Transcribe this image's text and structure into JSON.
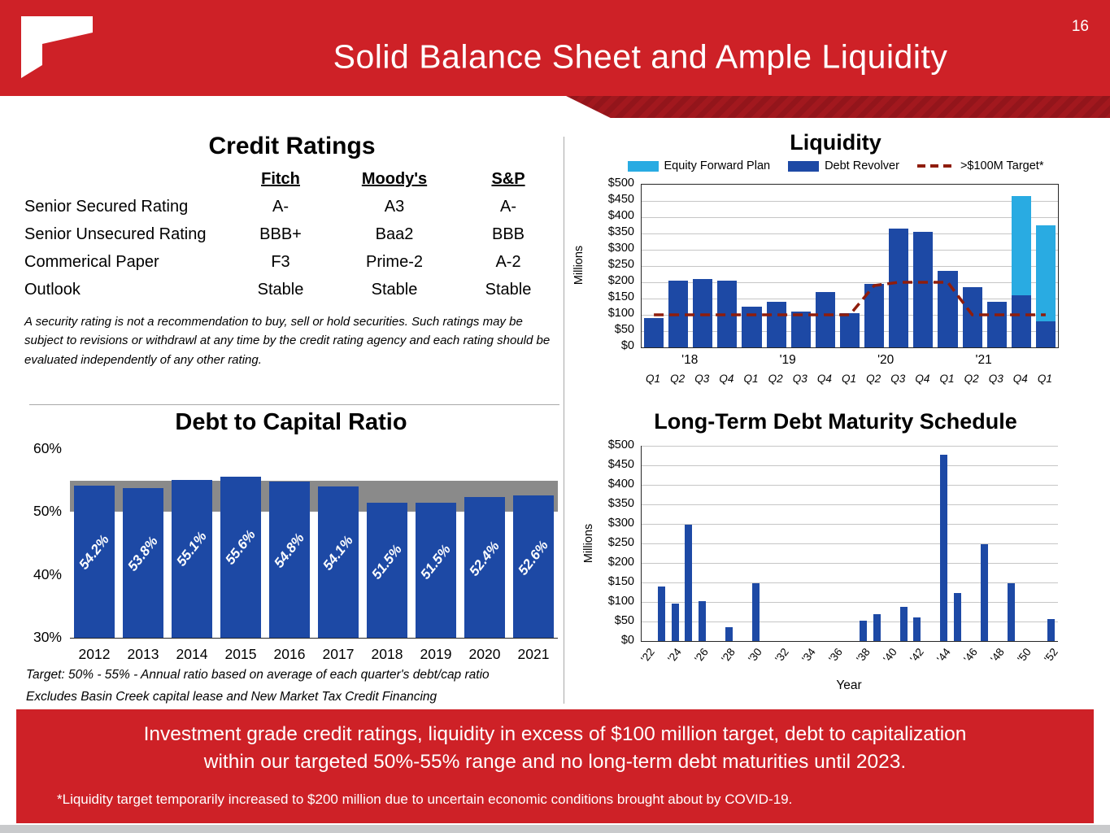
{
  "page": {
    "number": "16",
    "title": "Solid Balance Sheet and Ample Liquidity"
  },
  "credit_ratings": {
    "title": "Credit Ratings",
    "columns": [
      "Fitch",
      "Moody's",
      "S&P"
    ],
    "rows": [
      {
        "label": "Senior Secured Rating",
        "values": [
          "A-",
          "A3",
          "A-"
        ]
      },
      {
        "label": "Senior Unsecured Rating",
        "values": [
          "BBB+",
          "Baa2",
          "BBB"
        ]
      },
      {
        "label": "Commerical Paper",
        "values": [
          "F3",
          "Prime-2",
          "A-2"
        ]
      },
      {
        "label": "Outlook",
        "values": [
          "Stable",
          "Stable",
          "Stable"
        ]
      }
    ],
    "disclaimer": "A security rating is not a recommendation to buy, sell or hold securities.  Such ratings may be subject to revisions or withdrawl at any time by the credit rating agency and each rating should be evaluated independently of any other rating."
  },
  "footer": {
    "takeaway_line1": "Investment grade credit ratings, liquidity in excess of $100 million target, debt to capitalization",
    "takeaway_line2": "within our targeted 50%-55% range and no long-term debt maturities until 2023.",
    "footnote": "*Liquidity target temporarily increased to $200 million due to uncertain economic conditions brought about by COVID-19."
  },
  "colors": {
    "brand_red": "#ce2127",
    "ribbon_red": "#a2181e",
    "bar_dark_blue": "#1d49a5",
    "bar_light_blue": "#29abe2",
    "target_line_red": "#8f1d0c",
    "target_band_gray": "#8a8a8a"
  },
  "chart_data": [
    {
      "id": "liquidity",
      "type": "bar",
      "title": "Liquidity",
      "ylabel": "Millions",
      "ylim": [
        0,
        500
      ],
      "ytick_step": 50,
      "ytick_labels": [
        "$0",
        "$50",
        "$100",
        "$150",
        "$200",
        "$250",
        "$300",
        "$350",
        "$400",
        "$450",
        "$500"
      ],
      "categories": [
        "Q1",
        "Q2",
        "Q3",
        "Q4",
        "Q1",
        "Q2",
        "Q3",
        "Q4",
        "Q1",
        "Q2",
        "Q3",
        "Q4",
        "Q1",
        "Q2",
        "Q3",
        "Q4",
        "Q1"
      ],
      "year_groups": [
        {
          "label": "'18",
          "start": 0,
          "span": 4
        },
        {
          "label": "'19",
          "start": 4,
          "span": 4
        },
        {
          "label": "'20",
          "start": 8,
          "span": 4
        },
        {
          "label": "'21",
          "start": 12,
          "span": 4
        }
      ],
      "legend": [
        {
          "label": "Equity Forward Plan",
          "color": "#29abe2",
          "style": "swatch"
        },
        {
          "label": "Debt Revolver",
          "color": "#1d49a5",
          "style": "swatch"
        },
        {
          "label": ">$100M Target*",
          "color": "#8f1d0c",
          "style": "dashed-line"
        }
      ],
      "series": [
        {
          "name": "Debt Revolver",
          "color": "#1d49a5",
          "values": [
            90,
            205,
            210,
            205,
            125,
            140,
            110,
            170,
            105,
            195,
            365,
            355,
            235,
            185,
            140,
            160,
            80
          ]
        },
        {
          "name": "Equity Forward Plan",
          "color": "#29abe2",
          "values": [
            0,
            0,
            0,
            0,
            0,
            0,
            0,
            0,
            0,
            0,
            0,
            0,
            0,
            0,
            0,
            305,
            295
          ]
        }
      ],
      "target_line": {
        "name": ">$100M Target*",
        "color": "#8f1d0c",
        "values": [
          100,
          100,
          100,
          100,
          100,
          100,
          100,
          100,
          100,
          190,
          200,
          200,
          200,
          100,
          100,
          100,
          100
        ]
      }
    },
    {
      "id": "debt_to_capital",
      "type": "bar",
      "title": "Debt to Capital Ratio",
      "categories": [
        "2012",
        "2013",
        "2014",
        "2015",
        "2016",
        "2017",
        "2018",
        "2019",
        "2020",
        "2021"
      ],
      "values": [
        54.2,
        53.8,
        55.1,
        55.6,
        54.8,
        54.1,
        51.5,
        51.5,
        52.4,
        52.6
      ],
      "value_labels": [
        "54.2%",
        "53.8%",
        "55.1%",
        "55.6%",
        "54.8%",
        "54.1%",
        "51.5%",
        "51.5%",
        "52.4%",
        "52.6%"
      ],
      "bar_color": "#1d49a5",
      "ylim": [
        30,
        60
      ],
      "ytick_values": [
        30,
        40,
        50,
        60
      ],
      "ytick_labels": [
        "30%",
        "40%",
        "50%",
        "60%"
      ],
      "target_band": {
        "from": 50,
        "to": 55,
        "color": "#8a8a8a"
      },
      "notes": [
        "Target:  50% - 55% - Annual ratio based on average of each quarter's debt/cap ratio",
        "Excludes Basin Creek capital lease and New Market Tax Credit Financing"
      ]
    },
    {
      "id": "maturity",
      "type": "bar",
      "title": "Long-Term Debt Maturity Schedule",
      "xlabel": "Year",
      "ylabel": "Millions",
      "ylim": [
        0,
        500
      ],
      "ytick_step": 50,
      "ytick_labels": [
        "$0",
        "$50",
        "$100",
        "$150",
        "$200",
        "$250",
        "$300",
        "$350",
        "$400",
        "$450",
        "$500"
      ],
      "x_start": 22,
      "x_end": 52,
      "xtick_labels": [
        "'22",
        "'24",
        "'26",
        "'28",
        "'30",
        "'32",
        "'34",
        "'36",
        "'38",
        "'40",
        "'42",
        "'44",
        "'46",
        "'48",
        "'50",
        "'52"
      ],
      "bar_color": "#1d49a5",
      "bars": [
        {
          "year": 23,
          "value": 140
        },
        {
          "year": 24,
          "value": 95
        },
        {
          "year": 25,
          "value": 298
        },
        {
          "year": 26,
          "value": 103
        },
        {
          "year": 28,
          "value": 35
        },
        {
          "year": 30,
          "value": 148
        },
        {
          "year": 38,
          "value": 52
        },
        {
          "year": 39,
          "value": 68
        },
        {
          "year": 41,
          "value": 88
        },
        {
          "year": 42,
          "value": 60
        },
        {
          "year": 44,
          "value": 478
        },
        {
          "year": 45,
          "value": 122
        },
        {
          "year": 47,
          "value": 248
        },
        {
          "year": 49,
          "value": 148
        },
        {
          "year": 52,
          "value": 57
        }
      ]
    }
  ]
}
